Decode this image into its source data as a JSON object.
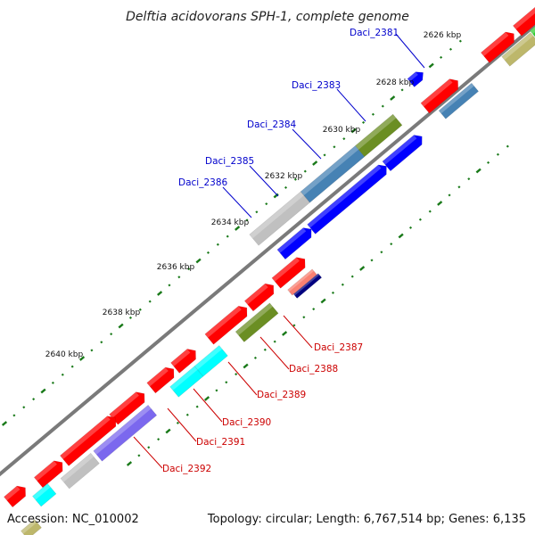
{
  "title": "Delftia acidovorans SPH-1, complete genome",
  "accession": "Accession: NC_010002",
  "topology": "Topology: circular; Length: 6,767,514 bp; Genes: 6,135",
  "colors": {
    "backbone": "#7a7a7a",
    "tick": "#1a7a1a",
    "top_label": "#0000cc",
    "bottom_label": "#cc0000",
    "red": "#ff0000",
    "blue": "#0000ff",
    "steelblue": "#4682b4",
    "olive": "#6b8e23",
    "khaki": "#bdb76b",
    "silver": "#c0c0c0",
    "cyan": "#00ffff",
    "slateblue": "#7b68ee",
    "green": "#32cd32",
    "navy": "#000080",
    "salmon": "#fa8072"
  },
  "kbp_labels": [
    {
      "text": "2626 kbp"
    },
    {
      "text": "2628 kbp"
    },
    {
      "text": "2630 kbp"
    },
    {
      "text": "2632 kbp"
    },
    {
      "text": "2634 kbp"
    },
    {
      "text": "2636 kbp"
    },
    {
      "text": "2638 kbp"
    },
    {
      "text": "2640 kbp"
    }
  ],
  "top_genes": [
    {
      "name": "Daci_2381"
    },
    {
      "name": "Daci_2383"
    },
    {
      "name": "Daci_2384"
    },
    {
      "name": "Daci_2385"
    },
    {
      "name": "Daci_2386"
    }
  ],
  "bottom_genes": [
    {
      "name": "Daci_2387"
    },
    {
      "name": "Daci_2388"
    },
    {
      "name": "Daci_2389"
    },
    {
      "name": "Daci_2390"
    },
    {
      "name": "Daci_2391"
    },
    {
      "name": "Daci_2392"
    }
  ]
}
